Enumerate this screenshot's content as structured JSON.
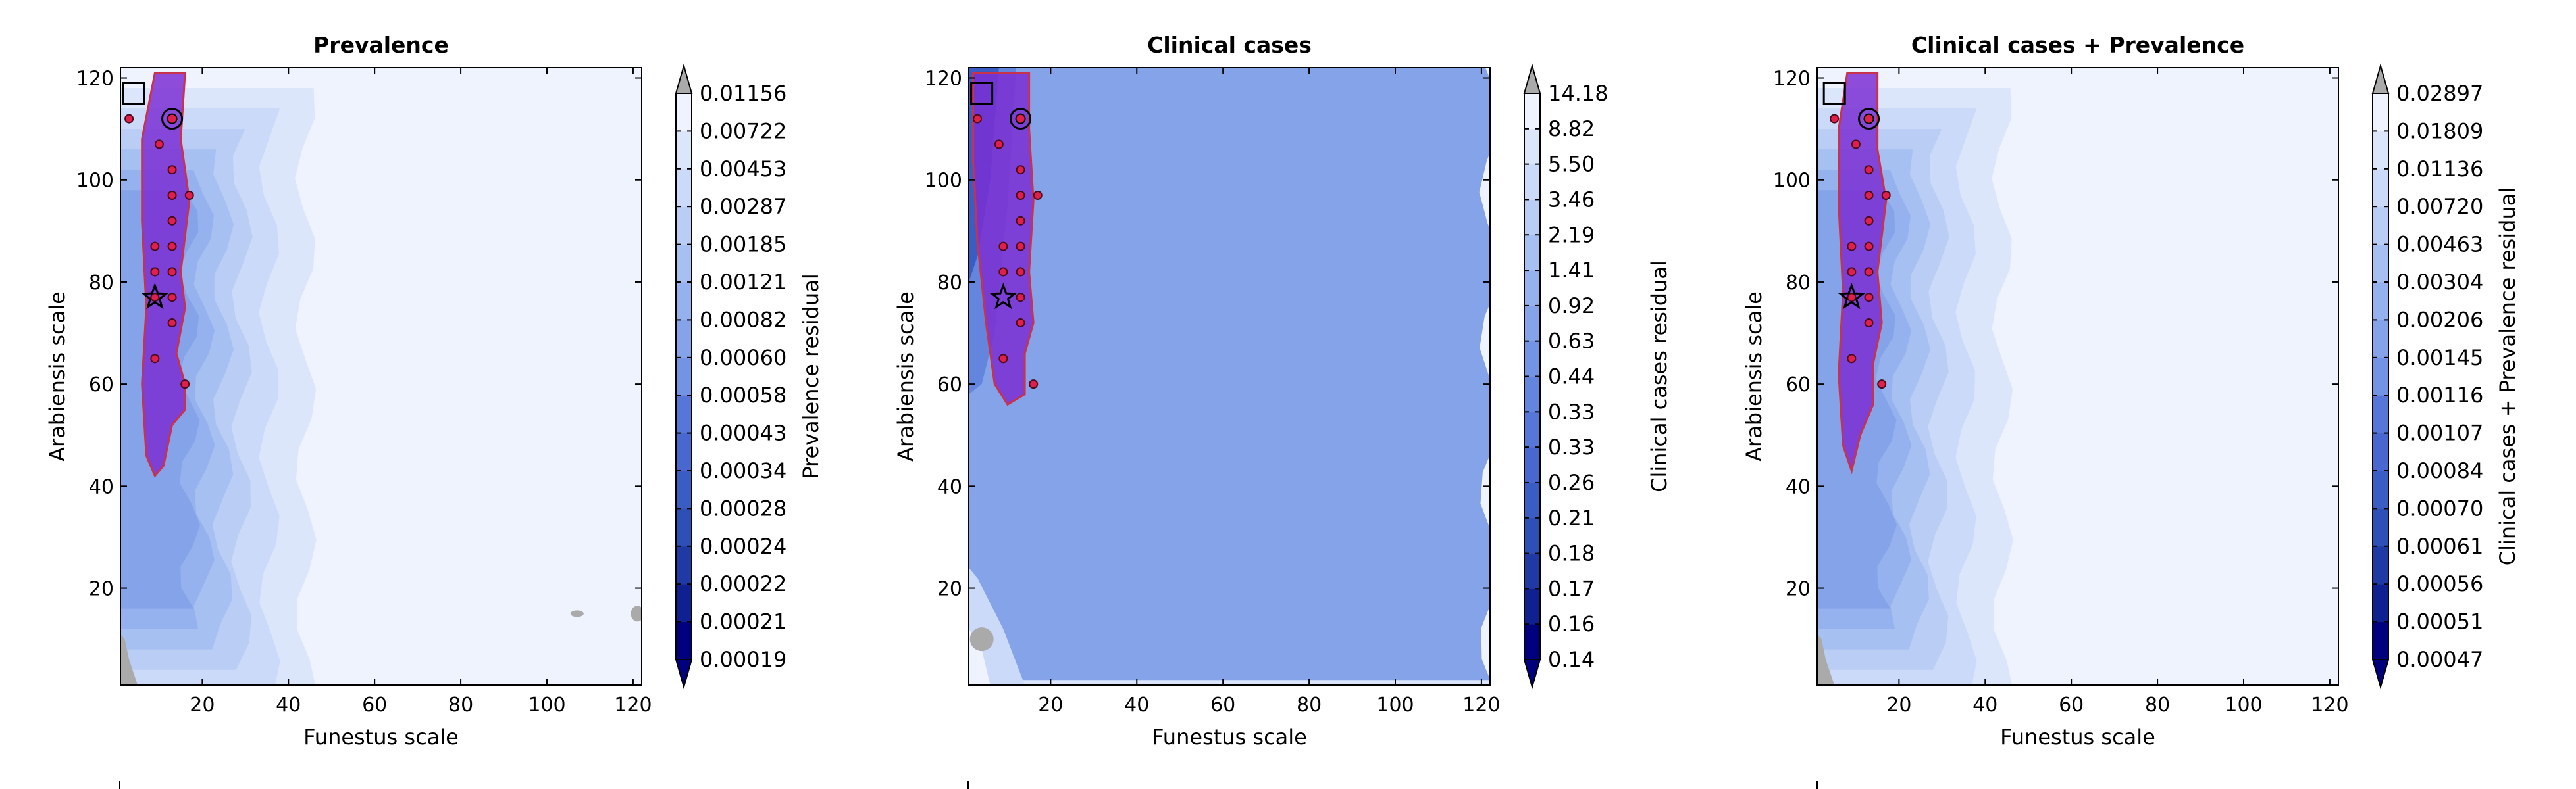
{
  "chart_data": [
    {
      "type": "contour",
      "title": "Prevalence",
      "xlabel": "Funestus scale",
      "ylabel": "Arabiensis scale",
      "xlim": [
        1,
        122
      ],
      "ylim": [
        1,
        122
      ],
      "xticks": [
        20,
        40,
        60,
        80,
        100,
        120
      ],
      "yticks": [
        20,
        40,
        60,
        80,
        100,
        120
      ],
      "colorbar_label": "Prevalence residual",
      "colorbar_levels": [
        "0.00019",
        "0.00021",
        "0.00022",
        "0.00024",
        "0.00028",
        "0.00034",
        "0.00043",
        "0.00058",
        "0.00060",
        "0.00082",
        "0.00121",
        "0.00185",
        "0.00287",
        "0.00453",
        "0.00722",
        "0.01156"
      ],
      "region_color": "#7b2fd4",
      "region_edge_color": "#c8324a",
      "region_polygon": [
        [
          9,
          121
        ],
        [
          16,
          121
        ],
        [
          15,
          108
        ],
        [
          17,
          96
        ],
        [
          15,
          82
        ],
        [
          16,
          75
        ],
        [
          14,
          66
        ],
        [
          16,
          60
        ],
        [
          16,
          55
        ],
        [
          13,
          52
        ],
        [
          11,
          44
        ],
        [
          9,
          42
        ],
        [
          7,
          46
        ],
        [
          6,
          60
        ],
        [
          7,
          75
        ],
        [
          6,
          92
        ],
        [
          6,
          108
        ]
      ],
      "points": [
        [
          3,
          112
        ],
        [
          10,
          107
        ],
        [
          13,
          102
        ],
        [
          13,
          97
        ],
        [
          17,
          97
        ],
        [
          13,
          92
        ],
        [
          9,
          87
        ],
        [
          13,
          87
        ],
        [
          9,
          82
        ],
        [
          13,
          82
        ],
        [
          9,
          77
        ],
        [
          13,
          77
        ],
        [
          13,
          72
        ],
        [
          9,
          65
        ],
        [
          16,
          60
        ]
      ],
      "circle_marker": [
        13,
        112
      ],
      "square_marker": [
        4,
        117
      ],
      "star_marker": [
        9,
        77
      ]
    },
    {
      "type": "contour",
      "title": "Clinical cases",
      "xlabel": "Funestus scale",
      "ylabel": "Arabiensis scale",
      "xlim": [
        1,
        122
      ],
      "ylim": [
        1,
        122
      ],
      "xticks": [
        20,
        40,
        60,
        80,
        100,
        120
      ],
      "yticks": [
        20,
        40,
        60,
        80,
        100,
        120
      ],
      "colorbar_label": "Clinical cases residual",
      "colorbar_levels": [
        "0.14",
        "0.16",
        "0.17",
        "0.18",
        "0.21",
        "0.26",
        "0.33",
        "0.33",
        "0.44",
        "0.63",
        "0.92",
        "1.41",
        "2.19",
        "3.46",
        "5.50",
        "8.82",
        "14.18"
      ],
      "region_color": "#7b2fd4",
      "region_edge_color": "#c8324a",
      "region_polygon": [
        [
          2,
          121
        ],
        [
          15,
          121
        ],
        [
          15,
          110
        ],
        [
          16,
          96
        ],
        [
          15,
          82
        ],
        [
          16,
          72
        ],
        [
          14,
          66
        ],
        [
          14,
          58
        ],
        [
          10,
          56
        ],
        [
          7,
          60
        ],
        [
          5,
          72
        ],
        [
          3,
          88
        ],
        [
          2,
          104
        ]
      ],
      "points": [
        [
          3,
          112
        ],
        [
          8,
          107
        ],
        [
          13,
          102
        ],
        [
          13,
          97
        ],
        [
          17,
          97
        ],
        [
          13,
          92
        ],
        [
          9,
          87
        ],
        [
          13,
          87
        ],
        [
          9,
          82
        ],
        [
          13,
          82
        ],
        [
          13,
          77
        ],
        [
          13,
          72
        ],
        [
          9,
          65
        ],
        [
          16,
          60
        ]
      ],
      "circle_marker": [
        13,
        112
      ],
      "square_marker": [
        4,
        117
      ],
      "star_marker": [
        9,
        77
      ]
    },
    {
      "type": "contour",
      "title": "Clinical cases + Prevalence",
      "xlabel": "Funestus scale",
      "ylabel": "Arabiensis scale",
      "xlim": [
        1,
        122
      ],
      "ylim": [
        1,
        122
      ],
      "xticks": [
        20,
        40,
        60,
        80,
        100,
        120
      ],
      "yticks": [
        20,
        40,
        60,
        80,
        100,
        120
      ],
      "colorbar_label": "Clinical cases + Prevalence residual",
      "colorbar_levels": [
        "0.00047",
        "0.00051",
        "0.00056",
        "0.00061",
        "0.00070",
        "0.00084",
        "0.00107",
        "0.00116",
        "0.00145",
        "0.00206",
        "0.00304",
        "0.00463",
        "0.00720",
        "0.01136",
        "0.01809",
        "0.02897"
      ],
      "region_color": "#7b2fd4",
      "region_edge_color": "#c8324a",
      "region_polygon": [
        [
          8,
          121
        ],
        [
          15,
          121
        ],
        [
          15,
          106
        ],
        [
          17,
          96
        ],
        [
          15,
          82
        ],
        [
          16,
          72
        ],
        [
          14,
          64
        ],
        [
          14,
          56
        ],
        [
          11,
          50
        ],
        [
          9,
          43
        ],
        [
          7,
          48
        ],
        [
          6,
          62
        ],
        [
          7,
          78
        ],
        [
          6,
          95
        ],
        [
          6,
          110
        ]
      ],
      "points": [
        [
          5,
          112
        ],
        [
          10,
          107
        ],
        [
          13,
          102
        ],
        [
          13,
          97
        ],
        [
          17,
          97
        ],
        [
          13,
          92
        ],
        [
          9,
          87
        ],
        [
          13,
          87
        ],
        [
          9,
          82
        ],
        [
          13,
          82
        ],
        [
          9,
          77
        ],
        [
          13,
          77
        ],
        [
          13,
          72
        ],
        [
          9,
          65
        ],
        [
          16,
          60
        ]
      ],
      "circle_marker": [
        13,
        112
      ],
      "square_marker": [
        5,
        117
      ],
      "star_marker": [
        9,
        77
      ]
    }
  ],
  "colors": {
    "colormap": [
      "#00007f",
      "#0f2191",
      "#1f3aa5",
      "#2e50b6",
      "#3a5dc4",
      "#4868cf",
      "#5676d8",
      "#6485de",
      "#7394e4",
      "#84a3e9",
      "#95b2ee",
      "#a7c0f2",
      "#b9cdf5",
      "#cadaf8",
      "#dce6fb",
      "#eef3fd"
    ],
    "over": "#aaaaaa",
    "under": "#00007f"
  }
}
